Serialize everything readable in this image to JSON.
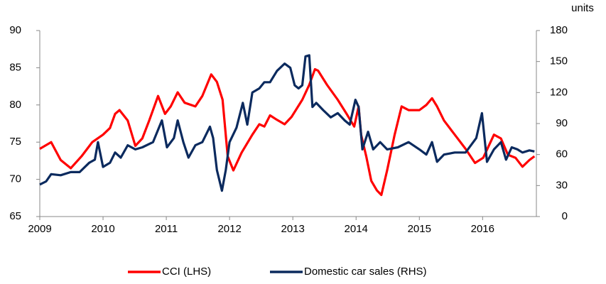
{
  "chart_data": {
    "type": "line",
    "y2_label": "units",
    "xlim": [
      2009,
      2016.85
    ],
    "xticks": [
      2009,
      2010,
      2011,
      2012,
      2013,
      2014,
      2015,
      2016
    ],
    "ylim": [
      65,
      90
    ],
    "yticks": [
      65,
      70,
      75,
      80,
      85,
      90
    ],
    "y2lim": [
      0,
      180
    ],
    "y2ticks": [
      0,
      30,
      60,
      90,
      120,
      150,
      180
    ],
    "grid": false,
    "legend": "bottom",
    "series": [
      {
        "name": "CCI (LHS)",
        "color": "#ff0000",
        "axis": "y",
        "x": [
          2009.0,
          2009.18,
          2009.33,
          2009.49,
          2009.66,
          2009.83,
          2010.0,
          2010.11,
          2010.19,
          2010.26,
          2010.39,
          2010.51,
          2010.62,
          2010.73,
          2010.87,
          2010.98,
          2011.07,
          2011.18,
          2011.29,
          2011.46,
          2011.57,
          2011.71,
          2011.8,
          2011.89,
          2011.97,
          2012.06,
          2012.19,
          2012.36,
          2012.47,
          2012.55,
          2012.64,
          2012.75,
          2012.87,
          2012.98,
          2013.15,
          2013.26,
          2013.35,
          2013.4,
          2013.54,
          2013.71,
          2013.85,
          2013.97,
          2014.04,
          2014.08,
          2014.16,
          2014.24,
          2014.33,
          2014.4,
          2014.49,
          2014.61,
          2014.72,
          2014.83,
          2015.0,
          2015.11,
          2015.2,
          2015.28,
          2015.39,
          2015.56,
          2015.73,
          2015.88,
          2016.01,
          2016.18,
          2016.29,
          2016.4,
          2016.52,
          2016.63,
          2016.74,
          2016.82
        ],
        "values": [
          74.1,
          75,
          72.6,
          71.5,
          73.1,
          75,
          76,
          76.9,
          78.8,
          79.3,
          77.9,
          74.5,
          75.5,
          77.9,
          81.2,
          78.8,
          79.8,
          81.7,
          80.3,
          79.8,
          81.2,
          84.1,
          83.1,
          80.7,
          73.1,
          71.2,
          73.6,
          76,
          77.4,
          77.1,
          78.6,
          78,
          77.4,
          78.4,
          80.7,
          82.7,
          84.8,
          84.6,
          82.7,
          80.7,
          78.8,
          77.1,
          79.8,
          76,
          73.1,
          69.8,
          68.5,
          67.9,
          71.2,
          76,
          79.8,
          79.3,
          79.3,
          80,
          80.9,
          79.8,
          77.9,
          76,
          74.1,
          72.2,
          72.9,
          76,
          75.5,
          73.3,
          72.9,
          71.7,
          72.6,
          73.1
        ]
      },
      {
        "name": "Domestic car sales (RHS)",
        "color": "#0b2a5e",
        "axis": "y2",
        "x": [
          2009.0,
          2009.1,
          2009.18,
          2009.33,
          2009.49,
          2009.63,
          2009.78,
          2009.87,
          2009.92,
          2010.0,
          2010.11,
          2010.19,
          2010.28,
          2010.39,
          2010.51,
          2010.62,
          2010.79,
          2010.93,
          2011.01,
          2011.12,
          2011.18,
          2011.27,
          2011.35,
          2011.46,
          2011.57,
          2011.69,
          2011.74,
          2011.8,
          2011.88,
          2011.94,
          2012.0,
          2012.11,
          2012.21,
          2012.28,
          2012.36,
          2012.47,
          2012.55,
          2012.64,
          2012.75,
          2012.87,
          2012.96,
          2013.03,
          2013.09,
          2013.15,
          2013.2,
          2013.26,
          2013.31,
          2013.37,
          2013.48,
          2013.6,
          2013.71,
          2013.82,
          2013.9,
          2013.99,
          2014.04,
          2014.1,
          2014.19,
          2014.27,
          2014.38,
          2014.49,
          2014.66,
          2014.83,
          2015.0,
          2015.11,
          2015.2,
          2015.28,
          2015.39,
          2015.56,
          2015.73,
          2015.9,
          2015.99,
          2016.07,
          2016.18,
          2016.29,
          2016.37,
          2016.46,
          2016.55,
          2016.63,
          2016.74,
          2016.82
        ],
        "values": [
          31,
          34,
          41,
          40,
          43,
          43,
          52,
          55,
          72,
          48,
          52,
          62,
          57,
          69,
          65,
          67,
          72,
          93,
          67,
          76,
          93,
          72,
          57,
          69,
          72,
          87,
          76,
          45,
          25,
          45,
          72,
          86,
          110,
          89,
          120,
          124,
          130,
          130,
          141,
          148,
          144,
          127,
          124,
          127,
          155,
          156,
          106,
          110,
          103,
          96,
          100,
          93,
          89,
          113,
          106,
          65,
          82,
          65,
          72,
          65,
          67,
          72,
          65,
          60,
          72,
          53,
          60,
          62,
          62,
          76,
          100,
          53,
          65,
          72,
          55,
          67,
          65,
          62,
          64,
          63
        ]
      }
    ]
  }
}
